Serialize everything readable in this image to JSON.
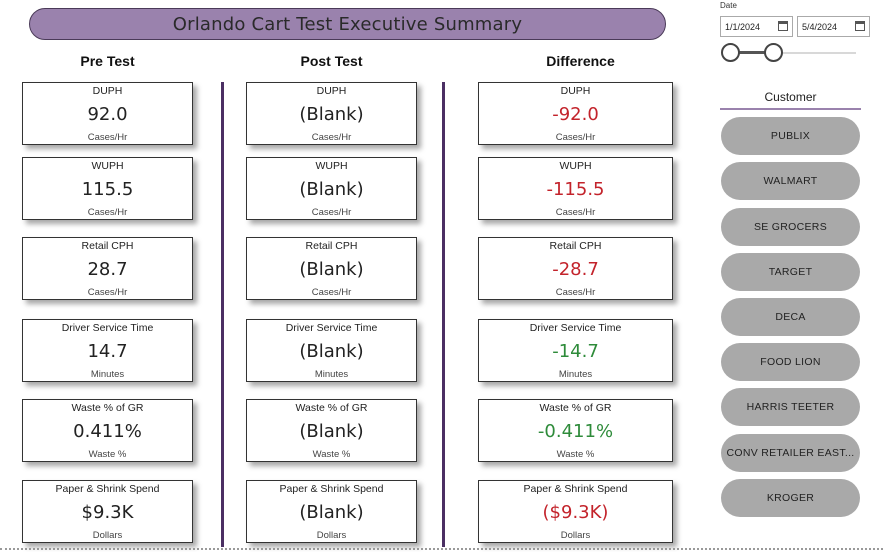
{
  "title": "Orlando Cart Test Executive Summary",
  "columns": {
    "pre": "Pre Test",
    "post": "Post Test",
    "diff": "Difference"
  },
  "metrics": [
    {
      "label": "DUPH",
      "unit": "Cases/Hr",
      "pre": "92.0",
      "post": "(Blank)",
      "diff": "-92.0"
    },
    {
      "label": "WUPH",
      "unit": "Cases/Hr",
      "pre": "115.5",
      "post": "(Blank)",
      "diff": "-115.5"
    },
    {
      "label": "Retail CPH",
      "unit": "Cases/Hr",
      "pre": "28.7",
      "post": "(Blank)",
      "diff": "-28.7"
    },
    {
      "label": "Driver Service Time",
      "unit": "Minutes",
      "pre": "14.7",
      "post": "(Blank)",
      "diff": "-14.7"
    },
    {
      "label": "Waste % of GR",
      "unit": "Waste %",
      "pre": "0.411%",
      "post": "(Blank)",
      "diff": "-0.411%"
    },
    {
      "label": "Paper & Shrink Spend",
      "unit": "Dollars",
      "pre": "$9.3K",
      "post": "(Blank)",
      "diff": "($9.3K)"
    }
  ],
  "diff_colors": [
    "red",
    "red",
    "red",
    "green",
    "green",
    "red"
  ],
  "date_filter": {
    "label": "Date",
    "start": "1/1/2024",
    "end": "5/4/2024"
  },
  "customer_filter": {
    "header": "Customer",
    "items": [
      "PUBLIX",
      "WALMART",
      "SE GROCERS",
      "TARGET",
      "DECA",
      "FOOD LION",
      "HARRIS TEETER",
      "CONV RETAILER EAST...",
      "KROGER"
    ]
  },
  "colors": {
    "accent": "#9a82ad",
    "divider": "#4b2f63",
    "negative": "#c3232b",
    "positive": "#2e8b3a"
  }
}
